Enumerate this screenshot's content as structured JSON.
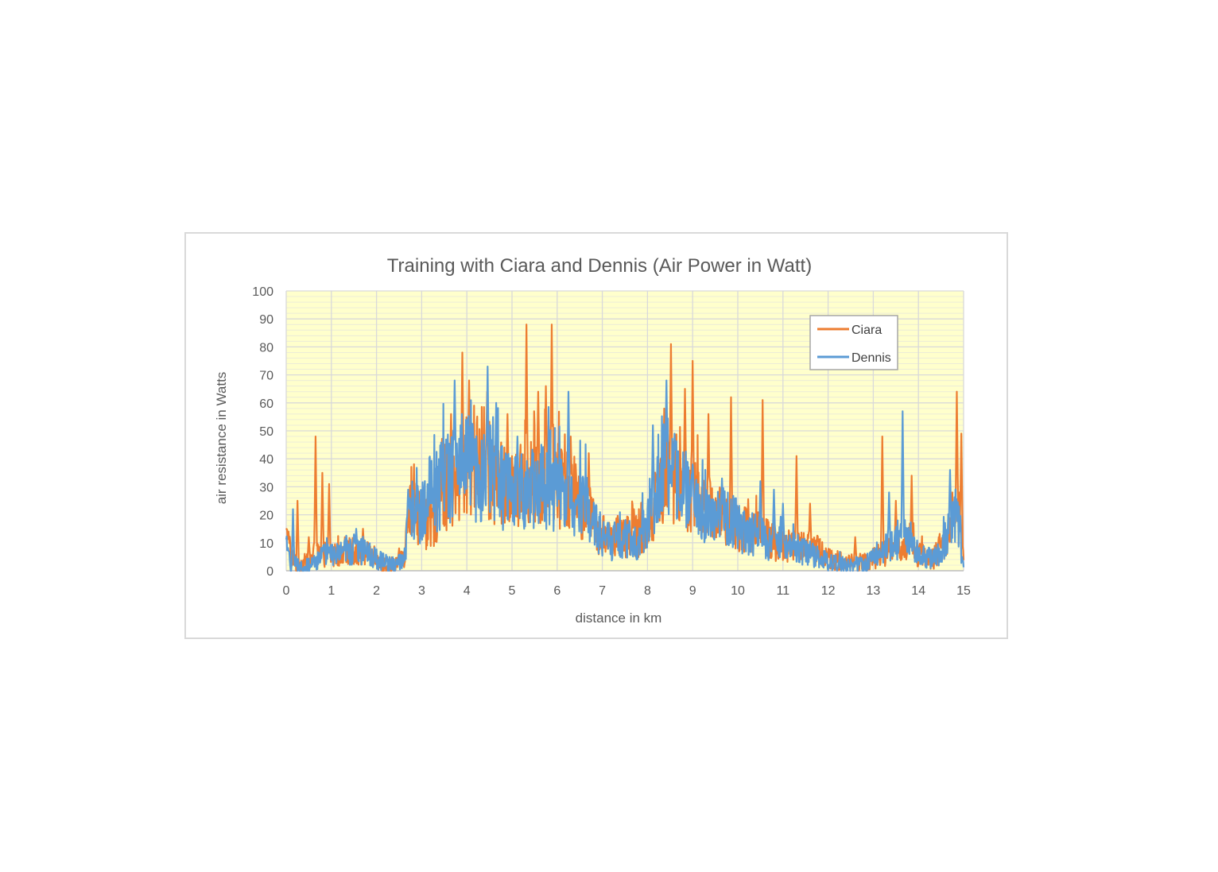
{
  "chart_data": {
    "type": "line",
    "title": "Training with Ciara and Dennis (Air Power in Watt)",
    "xlabel": "distance in km",
    "ylabel": "air resistance in Watts",
    "xlim": [
      0,
      15
    ],
    "ylim": [
      0,
      100
    ],
    "x_ticks": [
      0,
      1,
      2,
      3,
      4,
      5,
      6,
      7,
      8,
      9,
      10,
      11,
      12,
      13,
      14,
      15
    ],
    "y_ticks": [
      0,
      10,
      20,
      30,
      40,
      50,
      60,
      70,
      80,
      90,
      100
    ],
    "grid": true,
    "plot_background": "#ffffcc",
    "legend_position": "top-right",
    "series": [
      {
        "name": "Ciara",
        "color": "#ed7d31",
        "anchors": [
          [
            0,
            12
          ],
          [
            0.1,
            5
          ],
          [
            0.25,
            2
          ],
          [
            0.45,
            3
          ],
          [
            0.65,
            6
          ],
          [
            0.9,
            6
          ],
          [
            1.2,
            5
          ],
          [
            1.5,
            7
          ],
          [
            1.8,
            6
          ],
          [
            2.0,
            3
          ],
          [
            2.3,
            2
          ],
          [
            2.6,
            4
          ],
          [
            2.75,
            22
          ],
          [
            3.0,
            20
          ],
          [
            3.2,
            15
          ],
          [
            3.5,
            30
          ],
          [
            3.75,
            28
          ],
          [
            4.0,
            38
          ],
          [
            4.3,
            42
          ],
          [
            4.6,
            33
          ],
          [
            4.9,
            28
          ],
          [
            5.2,
            28
          ],
          [
            5.5,
            33
          ],
          [
            5.8,
            35
          ],
          [
            6.1,
            30
          ],
          [
            6.4,
            27
          ],
          [
            6.7,
            20
          ],
          [
            7.0,
            9
          ],
          [
            7.3,
            12
          ],
          [
            7.6,
            12
          ],
          [
            7.9,
            12
          ],
          [
            8.2,
            25
          ],
          [
            8.5,
            35
          ],
          [
            8.8,
            30
          ],
          [
            9.1,
            25
          ],
          [
            9.4,
            22
          ],
          [
            9.7,
            18
          ],
          [
            10.0,
            16
          ],
          [
            10.3,
            15
          ],
          [
            10.6,
            12
          ],
          [
            10.9,
            9
          ],
          [
            11.2,
            9
          ],
          [
            11.5,
            10
          ],
          [
            11.8,
            7
          ],
          [
            12.1,
            4
          ],
          [
            12.5,
            3
          ],
          [
            12.8,
            3
          ],
          [
            13.1,
            5
          ],
          [
            13.4,
            7
          ],
          [
            13.7,
            10
          ],
          [
            14.0,
            6
          ],
          [
            14.3,
            4
          ],
          [
            14.6,
            9
          ],
          [
            14.9,
            20
          ],
          [
            15.0,
            5
          ]
        ],
        "peaks": [
          [
            0.05,
            14
          ],
          [
            0.25,
            25
          ],
          [
            0.5,
            12
          ],
          [
            0.65,
            48
          ],
          [
            0.8,
            35
          ],
          [
            0.95,
            31
          ],
          [
            1.3,
            12
          ],
          [
            1.7,
            15
          ],
          [
            2.5,
            8
          ],
          [
            3.4,
            30
          ],
          [
            3.65,
            56
          ],
          [
            3.9,
            78
          ],
          [
            4.05,
            68
          ],
          [
            4.45,
            64
          ],
          [
            4.9,
            56
          ],
          [
            5.32,
            88
          ],
          [
            5.58,
            64
          ],
          [
            5.75,
            66
          ],
          [
            5.88,
            88
          ],
          [
            6.3,
            48
          ],
          [
            6.7,
            42
          ],
          [
            7.7,
            22
          ],
          [
            8.52,
            81
          ],
          [
            8.83,
            65
          ],
          [
            9.0,
            75
          ],
          [
            9.35,
            56
          ],
          [
            9.85,
            62
          ],
          [
            10.55,
            61
          ],
          [
            11.3,
            41
          ],
          [
            11.6,
            24
          ],
          [
            12.6,
            12
          ],
          [
            13.2,
            48
          ],
          [
            13.5,
            25
          ],
          [
            13.85,
            34
          ],
          [
            14.45,
            12
          ],
          [
            14.75,
            28
          ],
          [
            14.85,
            64
          ],
          [
            14.95,
            49
          ]
        ]
      },
      {
        "name": "Dennis",
        "color": "#5b9bd5",
        "anchors": [
          [
            0,
            8
          ],
          [
            0.1,
            2
          ],
          [
            0.2,
            2
          ],
          [
            0.4,
            1
          ],
          [
            0.6,
            3
          ],
          [
            0.8,
            5
          ],
          [
            1.1,
            6
          ],
          [
            1.4,
            7
          ],
          [
            1.7,
            7
          ],
          [
            2.0,
            4
          ],
          [
            2.3,
            2
          ],
          [
            2.6,
            3
          ],
          [
            2.75,
            25
          ],
          [
            3.0,
            20
          ],
          [
            3.3,
            28
          ],
          [
            3.6,
            34
          ],
          [
            3.9,
            40
          ],
          [
            4.2,
            34
          ],
          [
            4.5,
            33
          ],
          [
            4.8,
            30
          ],
          [
            5.1,
            28
          ],
          [
            5.4,
            30
          ],
          [
            5.7,
            30
          ],
          [
            6.0,
            28
          ],
          [
            6.3,
            25
          ],
          [
            6.6,
            22
          ],
          [
            6.9,
            14
          ],
          [
            7.2,
            10
          ],
          [
            7.5,
            12
          ],
          [
            7.8,
            10
          ],
          [
            8.1,
            20
          ],
          [
            8.3,
            38
          ],
          [
            8.6,
            32
          ],
          [
            8.9,
            28
          ],
          [
            9.2,
            22
          ],
          [
            9.5,
            18
          ],
          [
            9.8,
            20
          ],
          [
            10.1,
            14
          ],
          [
            10.4,
            13
          ],
          [
            10.7,
            10
          ],
          [
            11.0,
            10
          ],
          [
            11.3,
            8
          ],
          [
            11.6,
            6
          ],
          [
            12.0,
            3
          ],
          [
            12.4,
            2
          ],
          [
            12.8,
            2
          ],
          [
            13.1,
            6
          ],
          [
            13.4,
            9
          ],
          [
            13.7,
            12
          ],
          [
            14.0,
            6
          ],
          [
            14.3,
            4
          ],
          [
            14.6,
            10
          ],
          [
            14.85,
            22
          ],
          [
            15.0,
            0
          ]
        ],
        "peaks": [
          [
            0.15,
            22
          ],
          [
            1.5,
            13
          ],
          [
            1.55,
            15
          ],
          [
            2.7,
            29
          ],
          [
            3.55,
            42
          ],
          [
            3.73,
            68
          ],
          [
            4.46,
            73
          ],
          [
            4.65,
            60
          ],
          [
            5.12,
            48
          ],
          [
            5.45,
            42
          ],
          [
            6.25,
            64
          ],
          [
            8.12,
            52
          ],
          [
            8.42,
            68
          ],
          [
            8.6,
            49
          ],
          [
            9.0,
            38
          ],
          [
            9.65,
            33
          ],
          [
            10.5,
            32
          ],
          [
            10.8,
            29
          ],
          [
            11.0,
            24
          ],
          [
            13.65,
            57
          ],
          [
            13.35,
            28
          ],
          [
            14.7,
            36
          ]
        ]
      }
    ]
  }
}
